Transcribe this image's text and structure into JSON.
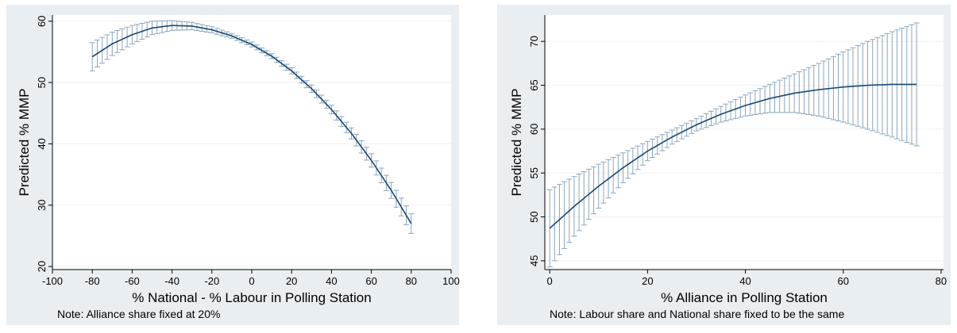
{
  "chart_data": [
    {
      "type": "line",
      "title": "",
      "xlabel": "% National - % Labour in Polling Station",
      "ylabel": "Predicted % MMP",
      "xlim": [
        -100,
        100
      ],
      "ylim": [
        19.5,
        61
      ],
      "xticks": [
        -100,
        -80,
        -60,
        -40,
        -20,
        0,
        20,
        40,
        60,
        80,
        100
      ],
      "yticks": [
        20,
        30,
        40,
        50,
        60
      ],
      "grid": true,
      "error_bars": true,
      "note": "Note: Alliance share fixed at 20%",
      "x": [
        -80,
        -70,
        -60,
        -50,
        -40,
        -30,
        -20,
        -10,
        0,
        10,
        20,
        30,
        40,
        50,
        60,
        70,
        80
      ],
      "y": [
        54.2,
        56.3,
        57.8,
        58.9,
        59.3,
        59.2,
        58.6,
        57.6,
        56.2,
        54.3,
        51.9,
        49.0,
        45.6,
        41.7,
        37.3,
        32.4,
        27.0
      ],
      "ci_halfwidth": [
        2.3,
        1.9,
        1.5,
        1.1,
        0.8,
        0.6,
        0.5,
        0.4,
        0.4,
        0.4,
        0.5,
        0.6,
        0.7,
        0.9,
        1.1,
        1.3,
        1.6
      ]
    },
    {
      "type": "line",
      "title": "",
      "xlabel": "% Alliance in Polling Station",
      "ylabel": "Predicted % MMP",
      "xlim": [
        -1,
        80.5
      ],
      "ylim": [
        44,
        73
      ],
      "xticks": [
        0,
        20,
        40,
        60,
        80
      ],
      "yticks": [
        45,
        50,
        55,
        60,
        65,
        70
      ],
      "grid": true,
      "error_bars": true,
      "note": "Note: Labour share and National share fixed to be the same",
      "x": [
        0,
        5,
        10,
        15,
        20,
        25,
        30,
        35,
        40,
        45,
        50,
        55,
        60,
        65,
        70,
        75
      ],
      "y": [
        48.7,
        51.2,
        53.5,
        55.6,
        57.5,
        59.1,
        60.5,
        61.7,
        62.7,
        63.5,
        64.1,
        64.5,
        64.8,
        65.0,
        65.1,
        65.1
      ],
      "ci_halfwidth": [
        4.4,
        3.4,
        2.5,
        1.7,
        1.1,
        0.8,
        0.7,
        0.9,
        1.2,
        1.6,
        2.2,
        3.0,
        4.0,
        5.0,
        6.0,
        7.0
      ]
    }
  ],
  "colors": {
    "panel_bg": "#e9eef2",
    "line": "#1a476f",
    "bars": "#8aa6bd",
    "grid": "#ffffff",
    "axis": "#000000"
  }
}
